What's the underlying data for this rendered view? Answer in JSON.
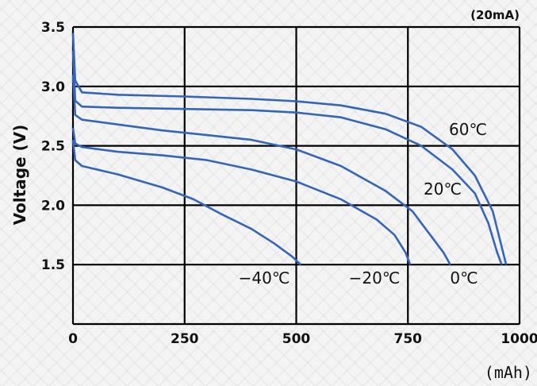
{
  "chart_data": {
    "type": "line",
    "title": "",
    "condition_label": "(20mA)",
    "xlabel": "",
    "x_unit": "(mAh)",
    "ylabel": "Voltage (V)",
    "xlim": [
      0,
      1000
    ],
    "ylim": [
      1.0,
      3.5
    ],
    "x_ticks": [
      0,
      250,
      500,
      750,
      1000
    ],
    "y_ticks": [
      1.5,
      2.0,
      2.5,
      3.0,
      3.5
    ],
    "grid": true,
    "line_color": "#3565b8",
    "series": [
      {
        "name": "60℃",
        "points": [
          [
            0,
            3.45
          ],
          [
            5,
            3.05
          ],
          [
            20,
            2.95
          ],
          [
            100,
            2.93
          ],
          [
            250,
            2.915
          ],
          [
            400,
            2.895
          ],
          [
            500,
            2.875
          ],
          [
            600,
            2.84
          ],
          [
            700,
            2.77
          ],
          [
            780,
            2.66
          ],
          [
            850,
            2.47
          ],
          [
            900,
            2.25
          ],
          [
            940,
            1.95
          ],
          [
            960,
            1.65
          ],
          [
            970,
            1.5
          ]
        ]
      },
      {
        "name": "20℃",
        "points": [
          [
            0,
            3.3
          ],
          [
            5,
            2.88
          ],
          [
            20,
            2.83
          ],
          [
            100,
            2.82
          ],
          [
            250,
            2.81
          ],
          [
            400,
            2.8
          ],
          [
            500,
            2.78
          ],
          [
            600,
            2.74
          ],
          [
            700,
            2.64
          ],
          [
            780,
            2.5
          ],
          [
            850,
            2.3
          ],
          [
            900,
            2.1
          ],
          [
            930,
            1.85
          ],
          [
            950,
            1.6
          ],
          [
            960,
            1.5
          ]
        ]
      },
      {
        "name": "0℃",
        "points": [
          [
            0,
            3.1
          ],
          [
            5,
            2.76
          ],
          [
            20,
            2.72
          ],
          [
            100,
            2.68
          ],
          [
            200,
            2.63
          ],
          [
            300,
            2.59
          ],
          [
            400,
            2.55
          ],
          [
            500,
            2.47
          ],
          [
            600,
            2.33
          ],
          [
            700,
            2.12
          ],
          [
            760,
            1.95
          ],
          [
            800,
            1.75
          ],
          [
            830,
            1.6
          ],
          [
            845,
            1.5
          ]
        ]
      },
      {
        "name": "−20℃",
        "points": [
          [
            0,
            2.65
          ],
          [
            5,
            2.52
          ],
          [
            20,
            2.49
          ],
          [
            100,
            2.45
          ],
          [
            200,
            2.42
          ],
          [
            300,
            2.38
          ],
          [
            400,
            2.3
          ],
          [
            500,
            2.2
          ],
          [
            600,
            2.05
          ],
          [
            680,
            1.88
          ],
          [
            720,
            1.75
          ],
          [
            745,
            1.6
          ],
          [
            755,
            1.5
          ]
        ]
      },
      {
        "name": "−40℃",
        "points": [
          [
            0,
            2.55
          ],
          [
            5,
            2.38
          ],
          [
            20,
            2.33
          ],
          [
            100,
            2.26
          ],
          [
            200,
            2.15
          ],
          [
            270,
            2.05
          ],
          [
            330,
            1.93
          ],
          [
            400,
            1.8
          ],
          [
            450,
            1.68
          ],
          [
            490,
            1.57
          ],
          [
            510,
            1.5
          ]
        ]
      }
    ]
  }
}
